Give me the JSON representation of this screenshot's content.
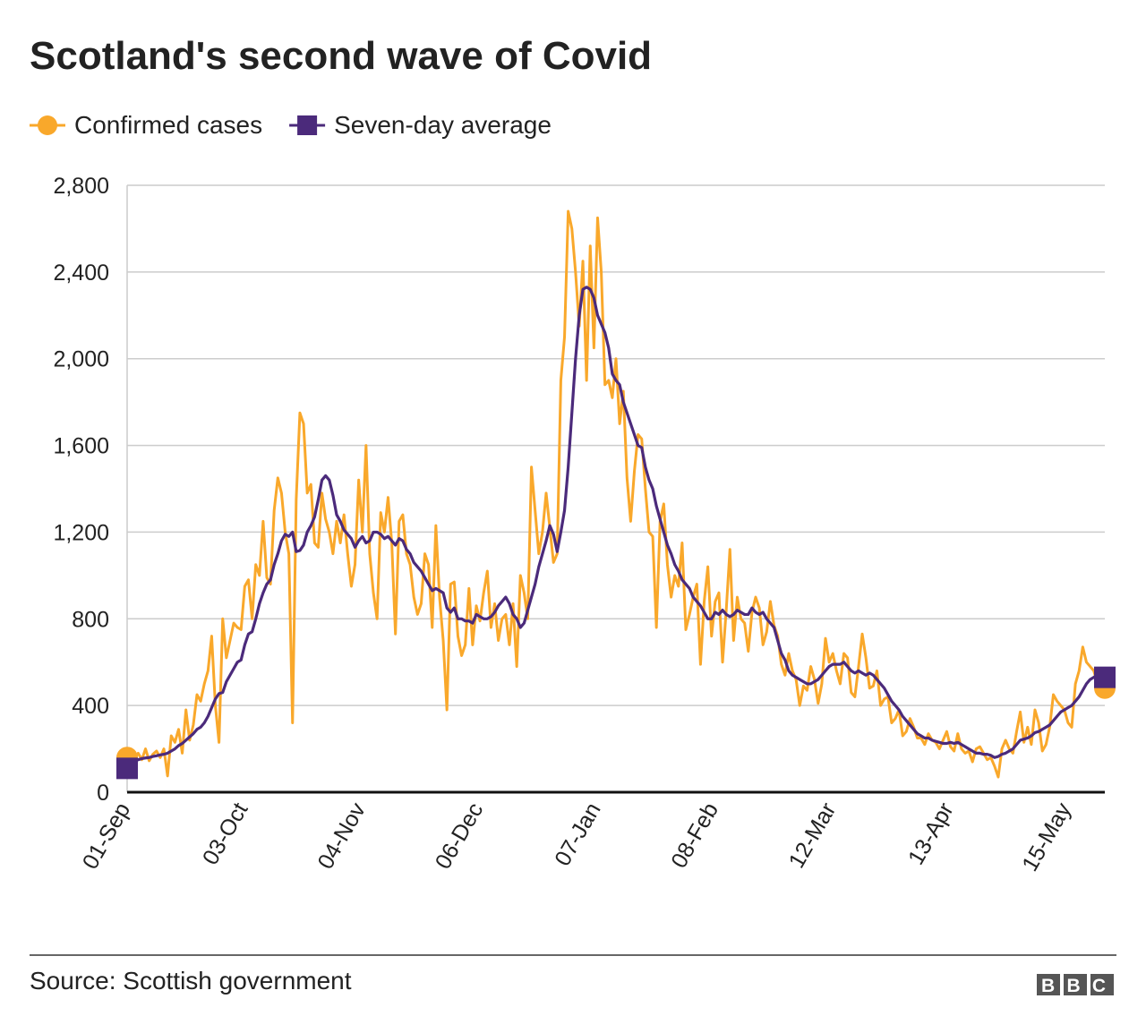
{
  "chart_data": {
    "type": "line",
    "title": "Scotland's second wave of Covid",
    "source": "Source: Scottish government",
    "logo": "BBC",
    "grid": true,
    "legend": "top-left",
    "categories": [
      "01-Sep",
      null,
      null,
      null,
      null,
      null,
      null,
      null,
      null,
      null,
      null,
      null,
      null,
      null,
      null,
      null,
      null,
      null,
      null,
      null,
      null,
      null,
      null,
      null,
      null,
      null,
      null,
      null,
      null,
      null,
      null,
      null,
      "03-Oct",
      null,
      null,
      null,
      null,
      null,
      null,
      null,
      null,
      null,
      null,
      null,
      null,
      null,
      null,
      null,
      null,
      null,
      null,
      null,
      null,
      null,
      null,
      null,
      null,
      null,
      null,
      null,
      null,
      null,
      null,
      null,
      "04-Nov",
      null,
      null,
      null,
      null,
      null,
      null,
      null,
      null,
      null,
      null,
      null,
      null,
      null,
      null,
      null,
      null,
      null,
      null,
      null,
      null,
      null,
      null,
      null,
      null,
      null,
      null,
      null,
      null,
      null,
      null,
      null,
      "06-Dec",
      null,
      null,
      null,
      null,
      null,
      null,
      null,
      null,
      null,
      null,
      null,
      null,
      null,
      null,
      null,
      null,
      null,
      null,
      null,
      null,
      null,
      null,
      null,
      null,
      null,
      null,
      null,
      null,
      null,
      null,
      null,
      "07-Jan",
      null,
      null,
      null,
      null,
      null,
      null,
      null,
      null,
      null,
      null,
      null,
      null,
      null,
      null,
      null,
      null,
      null,
      null,
      null,
      null,
      null,
      null,
      null,
      null,
      null,
      null,
      null,
      null,
      null,
      null,
      null,
      "08-Feb",
      null,
      null,
      null,
      null,
      null,
      null,
      null,
      null,
      null,
      null,
      null,
      null,
      null,
      null,
      null,
      null,
      null,
      null,
      null,
      null,
      null,
      null,
      null,
      null,
      null,
      null,
      null,
      null,
      null,
      null,
      null,
      "12-Mar",
      null,
      null,
      null,
      null,
      null,
      null,
      null,
      null,
      null,
      null,
      null,
      null,
      null,
      null,
      null,
      null,
      null,
      null,
      null,
      null,
      null,
      null,
      null,
      null,
      null,
      null,
      null,
      null,
      null,
      null,
      null,
      "13-Apr",
      null,
      null,
      null,
      null,
      null,
      null,
      null,
      null,
      null,
      null,
      null,
      null,
      null,
      null,
      null,
      null,
      null,
      null,
      null,
      null,
      null,
      null,
      null,
      null,
      null,
      null,
      null,
      null,
      null,
      null,
      null,
      "15-May",
      null,
      null,
      null,
      null,
      null,
      null,
      null,
      null,
      null,
      null
    ],
    "ylim": [
      0,
      2800
    ],
    "yticks": [
      0,
      400,
      800,
      {
        "value": 1200,
        "label": "1,200"
      },
      {
        "value": 1600,
        "label": "1,600"
      },
      {
        "value": 2000,
        "label": "2,000"
      },
      {
        "value": 2400,
        "label": "2,400"
      },
      {
        "value": 2800,
        "label": "2,800"
      }
    ],
    "series": [
      {
        "name": "Confirmed cases",
        "color": "#f9a82b",
        "marker": "circle",
        "values": [
          160,
          140,
          155,
          180,
          150,
          200,
          145,
          175,
          190,
          160,
          200,
          75,
          260,
          230,
          290,
          180,
          380,
          240,
          310,
          450,
          420,
          500,
          560,
          720,
          400,
          230,
          800,
          620,
          700,
          780,
          760,
          750,
          950,
          980,
          800,
          1050,
          1000,
          1250,
          990,
          960,
          1300,
          1450,
          1380,
          1200,
          1100,
          320,
          1350,
          1750,
          1700,
          1380,
          1420,
          1150,
          1130,
          1380,
          1260,
          1200,
          1100,
          1250,
          1150,
          1280,
          1100,
          950,
          1050,
          1440,
          1200,
          1600,
          1100,
          920,
          800,
          1290,
          1200,
          1360,
          1150,
          730,
          1250,
          1280,
          1100,
          1050,
          900,
          820,
          870,
          1100,
          1050,
          760,
          1230,
          900,
          700,
          380,
          960,
          970,
          720,
          630,
          680,
          940,
          680,
          860,
          790,
          920,
          1020,
          760,
          870,
          700,
          800,
          820,
          680,
          870,
          580,
          1000,
          920,
          800,
          1500,
          1300,
          1100,
          1200,
          1380,
          1220,
          1060,
          1100,
          1900,
          2100,
          2680,
          2600,
          2400,
          2150,
          2450,
          1900,
          2520,
          2050,
          2650,
          2400,
          1880,
          1900,
          1820,
          2000,
          1700,
          1850,
          1450,
          1250,
          1480,
          1650,
          1630,
          1400,
          1200,
          1180,
          760,
          1250,
          1330,
          1050,
          900,
          1000,
          950,
          1150,
          750,
          820,
          900,
          960,
          590,
          880,
          1040,
          720,
          880,
          920,
          600,
          840,
          1120,
          700,
          900,
          800,
          780,
          650,
          830,
          900,
          850,
          680,
          740,
          880,
          770,
          720,
          590,
          540,
          640,
          560,
          520,
          400,
          490,
          470,
          580,
          520,
          410,
          500,
          710,
          600,
          640,
          560,
          500,
          640,
          620,
          460,
          440,
          580,
          730,
          620,
          480,
          490,
          560,
          400,
          430,
          440,
          320,
          340,
          380,
          260,
          280,
          340,
          300,
          250,
          250,
          220,
          270,
          240,
          230,
          200,
          240,
          280,
          210,
          190,
          270,
          200,
          180,
          190,
          140,
          200,
          210,
          180,
          150,
          160,
          120,
          70,
          200,
          240,
          200,
          180,
          280,
          370,
          230,
          300,
          220,
          380,
          320,
          190,
          220,
          300,
          450,
          420,
          400,
          380,
          320,
          300,
          500,
          560,
          670,
          600,
          580,
          560,
          500,
          520,
          480
        ]
      },
      {
        "name": "Seven-day average",
        "color": "#4b2a7b",
        "marker": "square",
        "values": [
          110,
          125,
          140,
          150,
          155,
          158,
          160,
          165,
          168,
          172,
          175,
          180,
          190,
          200,
          215,
          225,
          240,
          255,
          270,
          290,
          300,
          320,
          350,
          390,
          430,
          455,
          460,
          510,
          540,
          570,
          600,
          610,
          680,
          730,
          740,
          800,
          870,
          920,
          960,
          980,
          1050,
          1100,
          1160,
          1190,
          1180,
          1200,
          1110,
          1115,
          1140,
          1200,
          1230,
          1270,
          1350,
          1440,
          1460,
          1440,
          1370,
          1280,
          1250,
          1210,
          1190,
          1170,
          1130,
          1160,
          1180,
          1150,
          1160,
          1200,
          1200,
          1190,
          1170,
          1180,
          1160,
          1140,
          1170,
          1160,
          1120,
          1100,
          1060,
          1040,
          1020,
          990,
          960,
          930,
          940,
          930,
          920,
          850,
          830,
          850,
          800,
          800,
          790,
          790,
          780,
          820,
          810,
          800,
          800,
          810,
          830,
          860,
          880,
          900,
          870,
          820,
          800,
          760,
          780,
          840,
          900,
          960,
          1040,
          1100,
          1160,
          1230,
          1190,
          1110,
          1200,
          1300,
          1500,
          1750,
          2000,
          2200,
          2320,
          2330,
          2320,
          2280,
          2200,
          2160,
          2120,
          2050,
          1930,
          1900,
          1880,
          1800,
          1750,
          1700,
          1650,
          1600,
          1590,
          1500,
          1440,
          1400,
          1320,
          1260,
          1200,
          1140,
          1100,
          1050,
          1020,
          980,
          960,
          940,
          900,
          880,
          860,
          830,
          800,
          800,
          830,
          820,
          840,
          820,
          810,
          820,
          840,
          830,
          820,
          820,
          850,
          830,
          820,
          830,
          800,
          780,
          760,
          700,
          640,
          610,
          560,
          540,
          530,
          520,
          510,
          500,
          500,
          510,
          520,
          540,
          560,
          580,
          590,
          590,
          590,
          600,
          580,
          560,
          550,
          560,
          550,
          540,
          550,
          540,
          520,
          500,
          480,
          450,
          420,
          400,
          380,
          350,
          330,
          310,
          290,
          270,
          260,
          250,
          250,
          240,
          235,
          230,
          225,
          225,
          230,
          225,
          230,
          220,
          210,
          200,
          190,
          180,
          180,
          175,
          175,
          170,
          160,
          165,
          175,
          180,
          190,
          200,
          220,
          240,
          245,
          250,
          260,
          275,
          280,
          290,
          300,
          310,
          330,
          350,
          370,
          380,
          390,
          400,
          420,
          440,
          470,
          500,
          520,
          530,
          540,
          545,
          530
        ]
      }
    ]
  }
}
